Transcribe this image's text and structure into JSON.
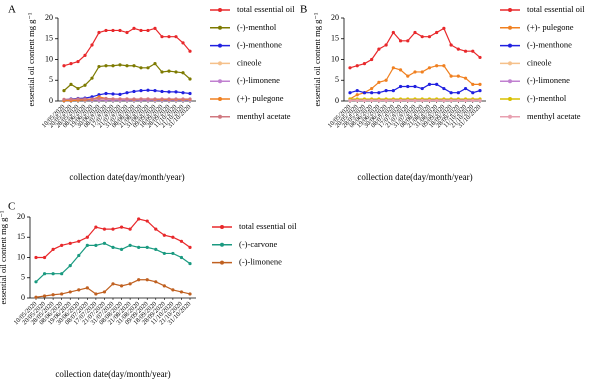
{
  "chart_data": [
    {
      "type": "line",
      "panel_label": "A",
      "y_label": "essential oil content mg g⁻¹",
      "x_label": "collection date(day/month/year)",
      "categories": [
        "10/05/2020",
        "20/05/2020",
        "28/05/2020",
        "08/06/2020",
        "19/06/2020",
        "30/06/2020",
        "08/07/2020",
        "17/07/2020",
        "21/07/2020",
        "31/07/2020",
        "08/08/2020",
        "21/08/2020",
        "31/08/2020",
        "09/09/2020",
        "18/09/2020",
        "28/09/2020",
        "11/10/2020",
        "21/10/2020",
        "31/10/2020"
      ],
      "ylim": [
        0,
        20
      ],
      "yticks": [
        0,
        5,
        10,
        15,
        20
      ],
      "series": [
        {
          "name": "total essential oil",
          "color": "#e8282b",
          "values": [
            8.5,
            9,
            9.5,
            11,
            13.5,
            16.5,
            17,
            17,
            17,
            16.5,
            17.5,
            17,
            17,
            17.5,
            15.5,
            15.5,
            15.5,
            14,
            12
          ]
        },
        {
          "name": "(-)-menthol",
          "color": "#7d7a00",
          "values": [
            2.5,
            4,
            3,
            3.8,
            5.5,
            8.3,
            8.5,
            8.5,
            8.7,
            8.5,
            8.5,
            8,
            8,
            9,
            7,
            7.2,
            7,
            6.8,
            5.3
          ]
        },
        {
          "name": "(-)-menthone",
          "color": "#2020e0",
          "values": [
            0.3,
            0.5,
            0.6,
            0.7,
            1,
            1.5,
            1.8,
            1.7,
            1.6,
            2,
            2.3,
            2.5,
            2.6,
            2.5,
            2.3,
            2.2,
            2.2,
            2,
            1.8
          ]
        },
        {
          "name": "cineole",
          "color": "#f5c08a",
          "values": [
            0.2,
            0.2,
            0.3,
            0.3,
            0.3,
            0.4,
            0.4,
            0.3,
            0.3,
            0.3,
            0.3,
            0.3,
            0.3,
            0.3,
            0.3,
            0.3,
            0.3,
            0.3,
            0.3
          ]
        },
        {
          "name": "(-)-limonene",
          "color": "#c080d0",
          "values": [
            0.1,
            0.1,
            0.2,
            0.2,
            0.2,
            0.2,
            0.2,
            0.2,
            0.2,
            0.2,
            0.2,
            0.2,
            0.2,
            0.2,
            0.2,
            0.2,
            0.2,
            0.2,
            0.2
          ]
        },
        {
          "name": "(+)- pulegone",
          "color": "#f08020",
          "values": [
            0.1,
            0.1,
            0.2,
            0.3,
            0.4,
            1,
            0.6,
            0.5,
            0.5,
            0.5,
            0.4,
            0.5,
            0.5,
            0.4,
            0.4,
            0.4,
            0.4,
            0.4,
            0.4
          ]
        },
        {
          "name": "menthyl acetate",
          "color": "#d07880",
          "values": [
            0.4,
            0.4,
            0.5,
            0.5,
            0.5,
            0.6,
            0.6,
            0.5,
            0.5,
            0.5,
            0.5,
            0.5,
            0.5,
            0.5,
            0.5,
            0.5,
            0.5,
            0.5,
            0.5
          ]
        }
      ]
    },
    {
      "type": "line",
      "panel_label": "B",
      "y_label": "essential oil content mg g⁻¹",
      "x_label": "collection date(day/month/year)",
      "categories": [
        "10/05/2020",
        "20/05/2020",
        "28/05/2020",
        "08/06/2020",
        "19/06/2020",
        "30/06/2020",
        "08/07/2020",
        "17/07/2020",
        "21/07/2020",
        "31/07/2020",
        "08/08/2020",
        "21/08/2020",
        "31/08/2020",
        "09/09/2020",
        "18/09/2020",
        "28/09/2020",
        "11/10/2020",
        "21/10/2020",
        "31/10/2020"
      ],
      "ylim": [
        0,
        20
      ],
      "yticks": [
        0,
        5,
        10,
        15,
        20
      ],
      "series": [
        {
          "name": "total essential oil",
          "color": "#e8282b",
          "values": [
            8,
            8.5,
            9,
            10,
            12.5,
            13.5,
            16.5,
            14.5,
            14.5,
            16.5,
            15.5,
            15.5,
            16.5,
            17.5,
            13.5,
            12.5,
            12,
            12,
            10.5
          ]
        },
        {
          "name": "(+)- pulegone",
          "color": "#f08020",
          "values": [
            0.5,
            1.5,
            2,
            3,
            4.5,
            5,
            8,
            7.5,
            6,
            7,
            7,
            8,
            8.5,
            8.5,
            6,
            6,
            5.5,
            4,
            4
          ]
        },
        {
          "name": "(-)-menthone",
          "color": "#2020e0",
          "values": [
            2,
            2.5,
            2,
            2,
            2,
            2.5,
            2.5,
            3.5,
            3.5,
            3.5,
            3,
            4,
            4,
            3,
            2,
            2,
            3,
            2,
            2.5
          ]
        },
        {
          "name": "cineole",
          "color": "#f5c08a",
          "values": [
            0.2,
            0.2,
            0.2,
            0.2,
            0.2,
            0.2,
            0.2,
            0.2,
            0.2,
            0.2,
            0.2,
            0.2,
            0.2,
            0.2,
            0.2,
            0.2,
            0.2,
            0.2,
            0.2
          ]
        },
        {
          "name": "(-)-limonene",
          "color": "#c080d0",
          "values": [
            0.3,
            0.3,
            0.3,
            0.3,
            0.3,
            0.3,
            0.3,
            0.3,
            0.3,
            0.3,
            0.3,
            0.3,
            0.3,
            0.3,
            0.3,
            0.3,
            0.3,
            0.3,
            0.3
          ]
        },
        {
          "name": "(-)-menthol",
          "color": "#d8c000",
          "values": [
            0.5,
            0.5,
            0.5,
            0.5,
            0.5,
            0.5,
            0.5,
            0.5,
            0.5,
            0.5,
            0.5,
            0.5,
            0.5,
            0.5,
            0.5,
            0.5,
            0.5,
            0.5,
            0.5
          ]
        },
        {
          "name": "menthyl acetate",
          "color": "#e8a0b0",
          "values": [
            0.1,
            0.1,
            0.1,
            0.1,
            0.1,
            0.1,
            0.1,
            0.1,
            0.1,
            0.1,
            0.1,
            0.1,
            0.1,
            0.1,
            0.1,
            0.1,
            0.1,
            0.1,
            0.1
          ]
        }
      ]
    },
    {
      "type": "line",
      "panel_label": "C",
      "y_label": "essential oil content mg g⁻¹",
      "x_label": "collection date(day/month/year)",
      "categories": [
        "10/05/2020",
        "20/05/2020",
        "28/05/2020",
        "08/06/2020",
        "19/06/2020",
        "30/06/2020",
        "08/07/2020",
        "17/07/2020",
        "21/07/2020",
        "31/07/2020",
        "08/08/2020",
        "21/08/2020",
        "31/08/2020",
        "09/09/2020",
        "18/09/2020",
        "28/09/2020",
        "11/10/2020",
        "21/10/2020",
        "31/10/2020"
      ],
      "ylim": [
        0,
        20
      ],
      "yticks": [
        0,
        5,
        10,
        15,
        20
      ],
      "series": [
        {
          "name": "total essential oil",
          "color": "#e8282b",
          "values": [
            10,
            10,
            12,
            13,
            13.5,
            14,
            15,
            17.5,
            17,
            17,
            17.5,
            17,
            19.5,
            19,
            17,
            15.5,
            15,
            14,
            12.5
          ]
        },
        {
          "name": "(-)-carvone",
          "color": "#1a9a80",
          "values": [
            4,
            6,
            6,
            6,
            8,
            10.5,
            13,
            13,
            13.5,
            12.5,
            12,
            13,
            12.5,
            12.5,
            12,
            11,
            11,
            10,
            8.5
          ]
        },
        {
          "name": "(-)-limonene",
          "color": "#c06020",
          "values": [
            0.2,
            0.5,
            0.8,
            1,
            1.5,
            2,
            2.5,
            1,
            1.5,
            3.5,
            3,
            3.5,
            4.5,
            4.5,
            4,
            3,
            2,
            1.5,
            1
          ]
        }
      ]
    }
  ]
}
